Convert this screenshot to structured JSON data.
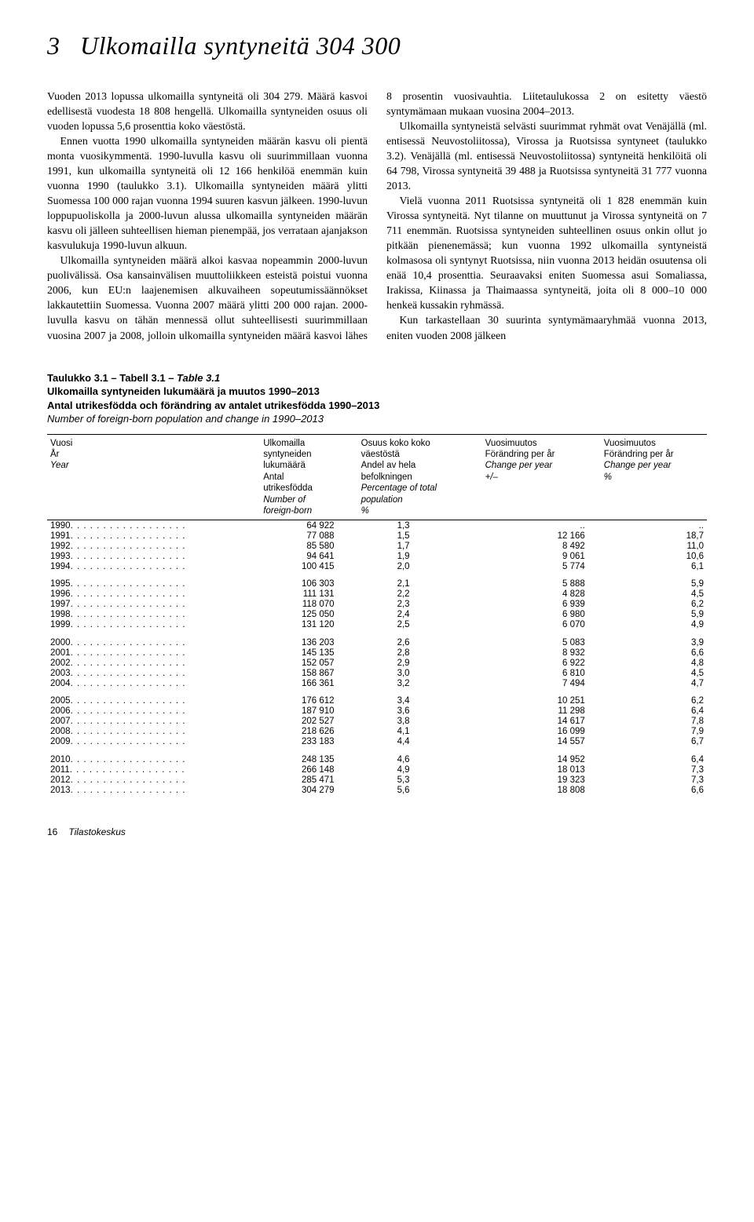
{
  "header": {
    "number": "3",
    "title": "Ulkomailla syntyneitä 304 300"
  },
  "paragraphs": [
    "Vuoden 2013 lopussa ulkomailla syntyneitä oli 304 279. Määrä kasvoi edellisestä vuodesta 18 808 hengellä. Ulkomailla syntyneiden osuus oli vuoden lopussa 5,6 prosenttia koko väestöstä.",
    "Ennen vuotta 1990 ulkomailla syntyneiden määrän kasvu oli pientä monta vuosikymmentä. 1990-luvulla kasvu oli suurimmillaan vuonna 1991, kun ulkomailla syntyneitä oli 12 166 henkilöä enemmän kuin vuonna 1990 (taulukko 3.1). Ulkomailla syntyneiden määrä ylitti Suomessa 100 000 rajan vuonna 1994 suuren kasvun jälkeen. 1990-luvun loppupuoliskolla ja 2000-luvun alussa ulkomailla syntyneiden määrän kasvu oli jälleen suhteellisen hieman pienempää, jos verrataan ajanjakson kasvulukuja 1990-luvun alkuun.",
    "Ulkomailla syntyneiden määrä alkoi kasvaa nopeammin 2000-luvun puolivälissä. Osa kansainvälisen muuttoliikkeen esteistä poistui vuonna 2006, kun EU:n laajenemisen alkuvaiheen sopeutumissäännökset lakkautettiin Suomessa. Vuonna 2007 määrä ylitti 200 000 rajan. 2000-luvulla kasvu on tähän mennessä ollut suhteellisesti suurimmillaan vuosina 2007 ja 2008, jolloin ulkomailla syntyneiden määrä kasvoi lähes 8 prosentin vuosivauhtia. Liitetaulukossa 2 on esitetty väestö syntymämaan mukaan vuosina 2004–2013.",
    "Ulkomailla syntyneistä selvästi suurimmat ryhmät ovat Venäjällä (ml. entisessä Neuvostoliitossa), Virossa ja Ruotsissa syntyneet (taulukko 3.2). Venäjällä (ml. entisessä Neuvostoliitossa) syntyneitä henkilöitä oli 64 798, Virossa syntyneitä 39 488 ja Ruotsissa syntyneitä 31 777 vuonna 2013.",
    "Vielä vuonna 2011 Ruotsissa syntyneitä oli 1 828 enemmän kuin Virossa syntyneitä. Nyt tilanne on muuttunut ja Virossa syntyneitä on 7 711 enemmän. Ruotsissa syntyneiden suhteellinen osuus onkin ollut jo pitkään pienenemässä; kun vuonna 1992 ulkomailla syntyneistä kolmasosa oli syntynyt Ruotsissa, niin vuonna 2013 heidän osuutensa oli enää 10,4 prosenttia. Seuraavaksi eniten Suomessa asui Somaliassa, Irakissa, Kiinassa ja Thaimaassa syntyneitä, joita oli 8 000–10 000 henkeä kussakin ryhmässä.",
    "Kun tarkastellaan 30 suurinta syntymämaaryhmää vuonna 2013, eniten vuoden 2008 jälkeen"
  ],
  "table": {
    "caption": {
      "ref_fi": "Taulukko 3.1",
      "ref_sv": "Tabell 3.1",
      "ref_en": "Table 3.1",
      "title_fi": "Ulkomailla syntyneiden lukumäärä ja muutos 1990–2013",
      "title_sv": "Antal utrikesfödda och förändring av antalet utrikesfödda 1990–2013",
      "title_en": "Number of foreign-born population and change in 1990–2013"
    },
    "head": {
      "col0": {
        "fi": "Vuosi",
        "sv": "År",
        "en": "Year"
      },
      "col1": {
        "fi": "Ulkomailla syntyneiden lukumäärä",
        "sv": "Antal utrikesfödda",
        "en": "Number of foreign-born"
      },
      "col2": {
        "fi": "Osuus koko koko väestöstä",
        "sv": "Andel av hela befolkningen",
        "en": "Percentage of total population",
        "unit": "%"
      },
      "col3": {
        "fi": "Vuosimuutos",
        "sv": "Förändring per år",
        "en": "Change per year",
        "unit": "+/–"
      },
      "col4": {
        "fi": "Vuosimuutos",
        "sv": "Förändring per år",
        "en": "Change per year",
        "unit": "%"
      }
    },
    "groups": [
      [
        {
          "year": "1990",
          "n": "64 922",
          "pct": "1,3",
          "abs": "..",
          "rel": ".."
        },
        {
          "year": "1991",
          "n": "77 088",
          "pct": "1,5",
          "abs": "12 166",
          "rel": "18,7"
        },
        {
          "year": "1992",
          "n": "85 580",
          "pct": "1,7",
          "abs": "8 492",
          "rel": "11,0"
        },
        {
          "year": "1993",
          "n": "94 641",
          "pct": "1,9",
          "abs": "9 061",
          "rel": "10,6"
        },
        {
          "year": "1994",
          "n": "100 415",
          "pct": "2,0",
          "abs": "5 774",
          "rel": "6,1"
        }
      ],
      [
        {
          "year": "1995",
          "n": "106 303",
          "pct": "2,1",
          "abs": "5 888",
          "rel": "5,9"
        },
        {
          "year": "1996",
          "n": "111 131",
          "pct": "2,2",
          "abs": "4 828",
          "rel": "4,5"
        },
        {
          "year": "1997",
          "n": "118 070",
          "pct": "2,3",
          "abs": "6 939",
          "rel": "6,2"
        },
        {
          "year": "1998",
          "n": "125 050",
          "pct": "2,4",
          "abs": "6 980",
          "rel": "5,9"
        },
        {
          "year": "1999",
          "n": "131 120",
          "pct": "2,5",
          "abs": "6 070",
          "rel": "4,9"
        }
      ],
      [
        {
          "year": "2000",
          "n": "136 203",
          "pct": "2,6",
          "abs": "5 083",
          "rel": "3,9"
        },
        {
          "year": "2001",
          "n": "145 135",
          "pct": "2,8",
          "abs": "8 932",
          "rel": "6,6"
        },
        {
          "year": "2002",
          "n": "152 057",
          "pct": "2,9",
          "abs": "6 922",
          "rel": "4,8"
        },
        {
          "year": "2003",
          "n": "158 867",
          "pct": "3,0",
          "abs": "6 810",
          "rel": "4,5"
        },
        {
          "year": "2004",
          "n": "166 361",
          "pct": "3,2",
          "abs": "7 494",
          "rel": "4,7"
        }
      ],
      [
        {
          "year": "2005",
          "n": "176 612",
          "pct": "3,4",
          "abs": "10 251",
          "rel": "6,2"
        },
        {
          "year": "2006",
          "n": "187 910",
          "pct": "3,6",
          "abs": "11 298",
          "rel": "6,4"
        },
        {
          "year": "2007",
          "n": "202 527",
          "pct": "3,8",
          "abs": "14 617",
          "rel": "7,8"
        },
        {
          "year": "2008",
          "n": "218 626",
          "pct": "4,1",
          "abs": "16 099",
          "rel": "7,9"
        },
        {
          "year": "2009",
          "n": "233 183",
          "pct": "4,4",
          "abs": "14 557",
          "rel": "6,7"
        }
      ],
      [
        {
          "year": "2010",
          "n": "248 135",
          "pct": "4,6",
          "abs": "14 952",
          "rel": "6,4"
        },
        {
          "year": "2011",
          "n": "266 148",
          "pct": "4,9",
          "abs": "18 013",
          "rel": "7,3"
        },
        {
          "year": "2012",
          "n": "285 471",
          "pct": "5,3",
          "abs": "19 323",
          "rel": "7,3"
        },
        {
          "year": "2013",
          "n": "304 279",
          "pct": "5,6",
          "abs": "18 808",
          "rel": "6,6"
        }
      ]
    ]
  },
  "footer": {
    "page": "16",
    "source": "Tilastokeskus"
  }
}
